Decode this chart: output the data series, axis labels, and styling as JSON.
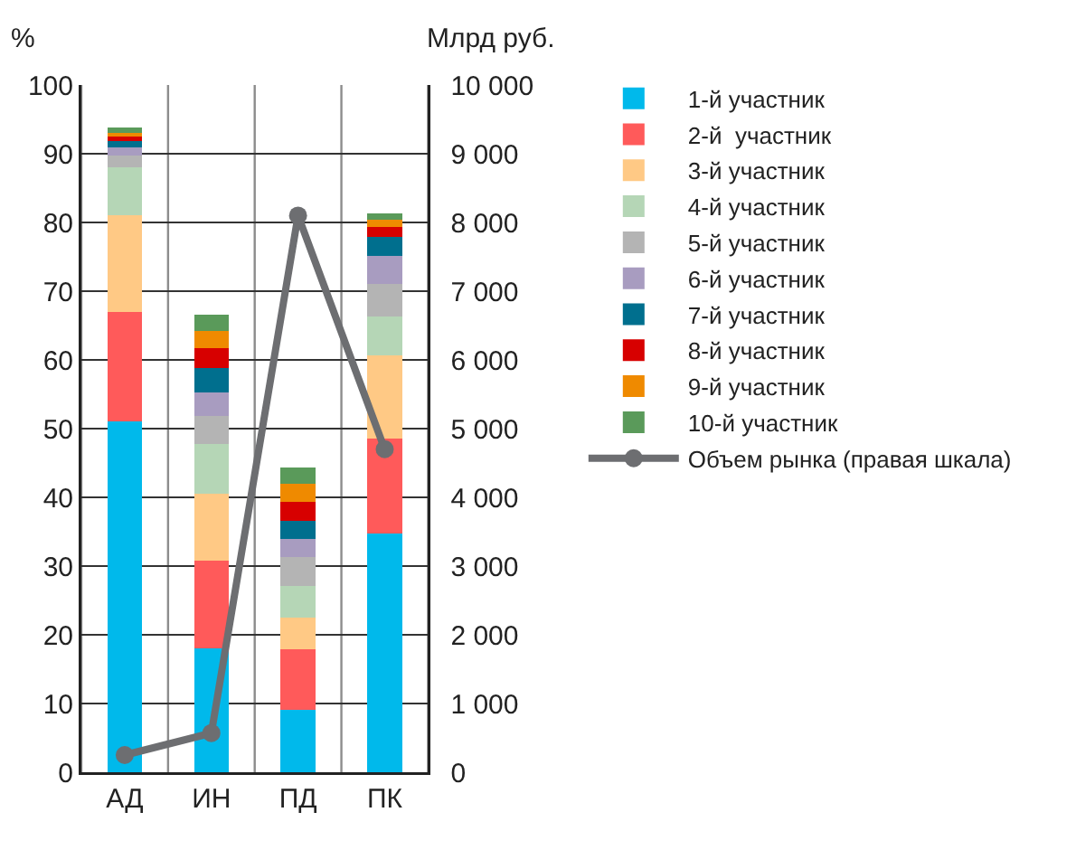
{
  "chart_data": {
    "type": "bar",
    "stacked": true,
    "ylabel": "%",
    "y2label": "Млрд руб.",
    "categories": [
      "АД",
      "ИН",
      "ПД",
      "ПК"
    ],
    "series": [
      {
        "name": "1-й участник",
        "color": "#00b9eb",
        "values": [
          51,
          18,
          9.1,
          34.8
        ]
      },
      {
        "name": "2-й  участник",
        "color": "#ff5a5a",
        "values": [
          16,
          12.8,
          8.8,
          13.7
        ]
      },
      {
        "name": "3-й участник",
        "color": "#ffc985",
        "values": [
          14,
          9.7,
          4.6,
          12.2
        ]
      },
      {
        "name": "4-й участник",
        "color": "#b5d6b6",
        "values": [
          7,
          7.3,
          4.6,
          5.6
        ]
      },
      {
        "name": "5-й участник",
        "color": "#b4b4b4",
        "values": [
          1.7,
          4,
          4.2,
          4.8
        ]
      },
      {
        "name": "6-й участник",
        "color": "#a89cc0",
        "values": [
          1.2,
          3.5,
          2.6,
          4
        ]
      },
      {
        "name": "7-й участник",
        "color": "#006f8e",
        "values": [
          1,
          3.5,
          2.7,
          2.8
        ]
      },
      {
        "name": "8-й участник",
        "color": "#d70000",
        "values": [
          0.6,
          2.9,
          2.7,
          1.4
        ]
      },
      {
        "name": "9-й участник",
        "color": "#ef8a00",
        "values": [
          0.5,
          2.5,
          2.7,
          1.1
        ]
      },
      {
        "name": "10-й участник",
        "color": "#5a9a5a",
        "values": [
          0.8,
          2.4,
          2.3,
          0.9
        ]
      },
      {
        "name": "Объем рынка (правая шкала)",
        "type": "line",
        "axis": "y2",
        "color": "#6d6e71",
        "values": [
          250,
          570,
          8100,
          4700
        ]
      }
    ],
    "ylim": [
      0,
      100
    ],
    "yticks": [
      0,
      10,
      20,
      30,
      40,
      50,
      60,
      70,
      80,
      90,
      100
    ],
    "y2lim": [
      0,
      10000
    ],
    "y2ticks": [
      0,
      {
        "value": 1000,
        "label": "1 000"
      },
      {
        "value": 2000,
        "label": "2 000"
      },
      {
        "value": 3000,
        "label": "3 000"
      },
      {
        "value": 4000,
        "label": "4 000"
      },
      {
        "value": 5000,
        "label": "5 000"
      },
      {
        "value": 6000,
        "label": "6 000"
      },
      {
        "value": 7000,
        "label": "7 000"
      },
      {
        "value": 8000,
        "label": "8 000"
      },
      {
        "value": 9000,
        "label": "9 000"
      },
      {
        "value": 10000,
        "label": "10 000"
      }
    ],
    "grid": true,
    "legend": "right",
    "marker": "circle"
  }
}
